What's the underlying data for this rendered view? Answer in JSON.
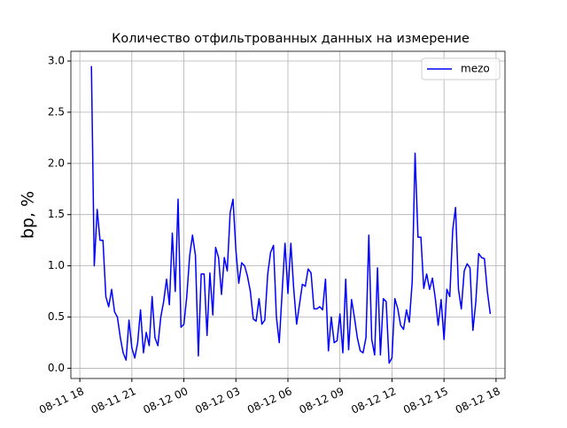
{
  "chart_data": {
    "type": "line",
    "title": "Количество отфильтрованных данных на измерение",
    "y_label": "bp, %",
    "x": [
      "08-11 18:40",
      "08-11 18:50",
      "08-11 19:00",
      "08-11 19:10",
      "08-11 19:20",
      "08-11 19:30",
      "08-11 19:40",
      "08-11 19:50",
      "08-11 20:00",
      "08-11 20:10",
      "08-11 20:20",
      "08-11 20:30",
      "08-11 20:40",
      "08-11 20:50",
      "08-11 21:00",
      "08-11 21:10",
      "08-11 21:20",
      "08-11 21:30",
      "08-11 21:40",
      "08-11 21:50",
      "08-11 22:00",
      "08-11 22:10",
      "08-11 22:20",
      "08-11 22:30",
      "08-11 22:40",
      "08-11 22:50",
      "08-11 23:00",
      "08-11 23:10",
      "08-11 23:20",
      "08-11 23:30",
      "08-11 23:40",
      "08-11 23:50",
      "08-12 00:00",
      "08-12 00:10",
      "08-12 00:20",
      "08-12 00:30",
      "08-12 00:40",
      "08-12 00:50",
      "08-12 01:00",
      "08-12 01:10",
      "08-12 01:20",
      "08-12 01:30",
      "08-12 01:40",
      "08-12 01:50",
      "08-12 02:00",
      "08-12 02:10",
      "08-12 02:20",
      "08-12 02:30",
      "08-12 02:40",
      "08-12 02:50",
      "08-12 03:00",
      "08-12 03:10",
      "08-12 03:20",
      "08-12 03:30",
      "08-12 03:40",
      "08-12 03:50",
      "08-12 04:00",
      "08-12 04:10",
      "08-12 04:20",
      "08-12 04:30",
      "08-12 04:40",
      "08-12 04:50",
      "08-12 05:00",
      "08-12 05:10",
      "08-12 05:20",
      "08-12 05:30",
      "08-12 05:40",
      "08-12 05:50",
      "08-12 06:00",
      "08-12 06:10",
      "08-12 06:20",
      "08-12 06:30",
      "08-12 06:40",
      "08-12 06:50",
      "08-12 07:00",
      "08-12 07:10",
      "08-12 07:20",
      "08-12 07:30",
      "08-12 07:40",
      "08-12 07:50",
      "08-12 08:00",
      "08-12 08:10",
      "08-12 08:20",
      "08-12 08:30",
      "08-12 08:40",
      "08-12 08:50",
      "08-12 09:00",
      "08-12 09:10",
      "08-12 09:20",
      "08-12 09:30",
      "08-12 09:40",
      "08-12 09:50",
      "08-12 10:00",
      "08-12 10:10",
      "08-12 10:20",
      "08-12 10:30",
      "08-12 10:40",
      "08-12 10:50",
      "08-12 11:00",
      "08-12 11:10",
      "08-12 11:20",
      "08-12 11:30",
      "08-12 11:40",
      "08-12 11:50",
      "08-12 12:00",
      "08-12 12:10",
      "08-12 12:20",
      "08-12 12:30",
      "08-12 12:40",
      "08-12 12:50",
      "08-12 13:00",
      "08-12 13:10",
      "08-12 13:20",
      "08-12 13:30",
      "08-12 13:40",
      "08-12 13:50",
      "08-12 14:00",
      "08-12 14:10",
      "08-12 14:20",
      "08-12 14:30",
      "08-12 14:40",
      "08-12 14:50",
      "08-12 15:00",
      "08-12 15:10",
      "08-12 15:20",
      "08-12 15:30",
      "08-12 15:40",
      "08-12 15:50",
      "08-12 16:00",
      "08-12 16:10",
      "08-12 16:20",
      "08-12 16:30",
      "08-12 16:40",
      "08-12 16:50",
      "08-12 17:00",
      "08-12 17:10",
      "08-12 17:20",
      "08-12 17:30",
      "08-12 17:40"
    ],
    "series": [
      {
        "name": "mezo",
        "color": "#0000ff",
        "values": [
          2.95,
          1.0,
          1.55,
          1.25,
          1.25,
          0.7,
          0.6,
          0.77,
          0.55,
          0.5,
          0.3,
          0.15,
          0.08,
          0.47,
          0.2,
          0.1,
          0.25,
          0.57,
          0.15,
          0.35,
          0.22,
          0.7,
          0.3,
          0.22,
          0.5,
          0.65,
          0.87,
          0.62,
          1.32,
          0.75,
          1.65,
          0.4,
          0.43,
          0.7,
          1.1,
          1.3,
          1.1,
          0.12,
          0.92,
          0.92,
          0.32,
          0.93,
          0.52,
          1.18,
          1.08,
          0.72,
          1.08,
          0.95,
          1.52,
          1.65,
          1.15,
          0.83,
          1.03,
          1.0,
          0.9,
          0.75,
          0.48,
          0.46,
          0.68,
          0.43,
          0.47,
          0.92,
          1.13,
          1.2,
          0.5,
          0.25,
          0.75,
          1.22,
          0.73,
          1.22,
          0.78,
          0.43,
          0.62,
          0.82,
          0.8,
          0.97,
          0.93,
          0.58,
          0.58,
          0.6,
          0.57,
          0.87,
          0.17,
          0.5,
          0.25,
          0.27,
          0.53,
          0.15,
          0.87,
          0.18,
          0.67,
          0.5,
          0.3,
          0.17,
          0.15,
          0.3,
          1.3,
          0.28,
          0.13,
          0.98,
          0.13,
          0.68,
          0.65,
          0.05,
          0.1,
          0.68,
          0.58,
          0.42,
          0.38,
          0.57,
          0.45,
          0.85,
          2.1,
          1.28,
          1.28,
          0.78,
          0.92,
          0.77,
          0.88,
          0.68,
          0.42,
          0.67,
          0.28,
          0.77,
          0.7,
          1.35,
          1.57,
          0.77,
          0.58,
          0.95,
          1.02,
          0.98,
          0.37,
          0.65,
          1.12,
          1.08,
          1.07,
          0.75,
          0.53
        ]
      }
    ],
    "xlim": [
      "08-11 17:29",
      "08-12 18:31"
    ],
    "xticks": [
      "08-11 18",
      "08-11 21",
      "08-12 00",
      "08-12 03",
      "08-12 06",
      "08-12 09",
      "08-12 12",
      "08-12 15",
      "08-12 18"
    ],
    "ylim": [
      -0.1,
      3.095
    ],
    "yticks": [
      {
        "value": 0,
        "label": "0.0"
      },
      0.5,
      {
        "value": 1,
        "label": "1.0"
      },
      1.5,
      {
        "value": 2,
        "label": "2.0"
      },
      2.5,
      {
        "value": 3,
        "label": "3.0"
      }
    ],
    "grid": true,
    "legend": "upper right"
  }
}
